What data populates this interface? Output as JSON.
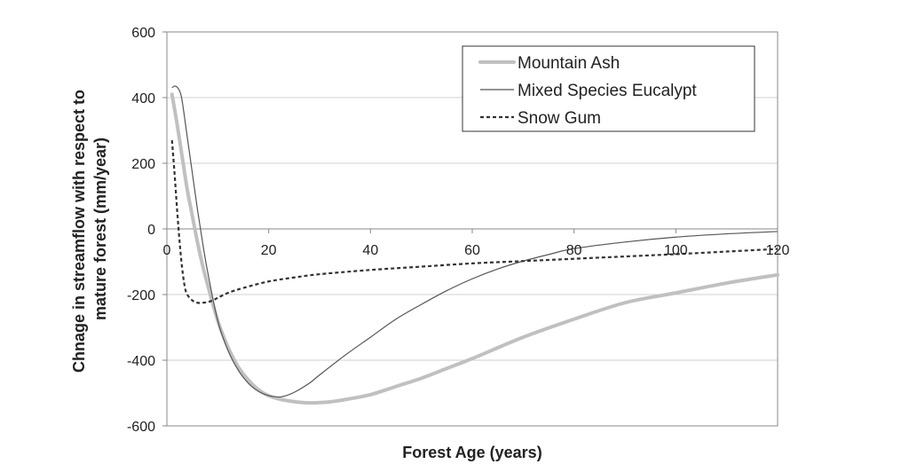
{
  "chart_data": {
    "type": "line",
    "title": "",
    "xlabel": "Forest Age (years)",
    "ylabel_lines": [
      "Chnage in streamflow with respect to",
      "mature forest (mm/year)"
    ],
    "xlim": [
      0,
      120
    ],
    "ylim": [
      -600,
      600
    ],
    "x_ticks": [
      0,
      20,
      40,
      60,
      80,
      100,
      120
    ],
    "y_ticks": [
      600,
      400,
      200,
      0,
      -200,
      -400,
      -600
    ],
    "grid": "horizontal",
    "legend_position": "top-right",
    "series": [
      {
        "name": "Mountain Ash",
        "style": "thick-light-gray",
        "color": "#c0c0c0",
        "x": [
          1,
          2,
          3,
          4,
          5,
          6,
          7,
          8,
          10,
          12,
          14,
          16,
          18,
          20,
          22,
          24,
          26,
          28,
          30,
          32,
          35,
          40,
          45,
          50,
          55,
          60,
          70,
          80,
          90,
          100,
          110,
          120
        ],
        "y": [
          410,
          320,
          220,
          120,
          40,
          -40,
          -110,
          -170,
          -280,
          -360,
          -420,
          -460,
          -490,
          -508,
          -518,
          -524,
          -528,
          -530,
          -529,
          -527,
          -520,
          -505,
          -480,
          -455,
          -425,
          -395,
          -330,
          -275,
          -225,
          -195,
          -165,
          -140
        ]
      },
      {
        "name": "Mixed Species Eucalypt",
        "style": "thin-dark",
        "color": "#555555",
        "x": [
          1,
          1.5,
          2,
          2.5,
          3,
          4,
          5,
          6,
          7,
          8,
          10,
          12,
          14,
          16,
          18,
          20,
          22,
          23,
          25,
          28,
          30,
          35,
          40,
          45,
          50,
          55,
          60,
          65,
          70,
          75,
          80,
          90,
          100,
          110,
          120
        ],
        "y": [
          430,
          435,
          432,
          420,
          390,
          280,
          170,
          60,
          -40,
          -130,
          -280,
          -370,
          -430,
          -470,
          -495,
          -508,
          -512,
          -510,
          -498,
          -470,
          -445,
          -385,
          -330,
          -275,
          -230,
          -188,
          -152,
          -122,
          -98,
          -78,
          -60,
          -40,
          -25,
          -15,
          -8
        ]
      },
      {
        "name": "Snow Gum",
        "style": "dashed-dark",
        "color": "#333333",
        "x": [
          1,
          1.5,
          2,
          2.5,
          3,
          3.5,
          4,
          5,
          6,
          7,
          8,
          9,
          10,
          12,
          15,
          20,
          25,
          30,
          40,
          50,
          60,
          70,
          80,
          90,
          100,
          110,
          120
        ],
        "y": [
          270,
          170,
          60,
          -40,
          -120,
          -175,
          -200,
          -218,
          -225,
          -225,
          -223,
          -218,
          -210,
          -195,
          -180,
          -160,
          -148,
          -138,
          -125,
          -115,
          -105,
          -98,
          -91,
          -84,
          -77,
          -69,
          -61
        ]
      }
    ]
  }
}
